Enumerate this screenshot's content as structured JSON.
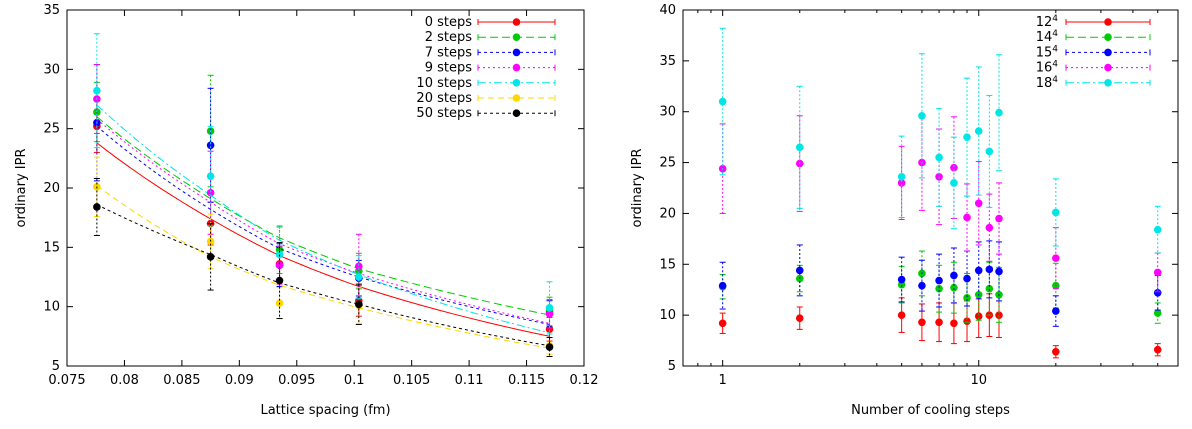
{
  "chart_data": [
    {
      "type": "scatter",
      "xlabel": "Lattice spacing (fm)",
      "ylabel": "ordinary IPR",
      "xlim": [
        0.075,
        0.12
      ],
      "ylim": [
        5,
        35
      ],
      "x_scale": "linear",
      "xticks": [
        0.075,
        0.08,
        0.085,
        0.09,
        0.095,
        0.1,
        0.105,
        0.11,
        0.115,
        0.12
      ],
      "xtick_labels": [
        "0.075",
        "0.08",
        "0.085",
        "0.09",
        "0.095",
        "0.1",
        "0.105",
        "0.11",
        "0.115",
        "0.12"
      ],
      "yticks": [
        5,
        10,
        15,
        20,
        25,
        30,
        35
      ],
      "ytick_labels": [
        "5",
        "10",
        "15",
        "20",
        "25",
        "30",
        "35"
      ],
      "legend_position": "top-right",
      "x": [
        0.0776,
        0.0875,
        0.0935,
        0.1004,
        0.117
      ],
      "series": [
        {
          "name": "0 steps",
          "color": "#ff0000",
          "dash": "solid",
          "y": [
            25.2,
            17.0,
            13.6,
            10.5,
            8.1
          ],
          "err": [
            2.2,
            1.8,
            1.5,
            1.3,
            1.0
          ],
          "fit": [
            23.8,
            17.4,
            14.3,
            11.7,
            7.5
          ]
        },
        {
          "name": "2 steps",
          "color": "#00cc00",
          "dash": "8,4",
          "y": [
            26.4,
            24.8,
            14.8,
            13.0,
            9.6
          ],
          "err": [
            2.5,
            4.7,
            2.0,
            1.5,
            1.2
          ],
          "fit": [
            26.0,
            19.1,
            15.8,
            13.2,
            9.3
          ]
        },
        {
          "name": "7 steps",
          "color": "#0000ff",
          "dash": "3,3",
          "y": [
            25.5,
            23.6,
            13.5,
            12.4,
            9.4
          ],
          "err": [
            4.9,
            4.8,
            1.8,
            1.5,
            1.1
          ],
          "fit": [
            25.2,
            18.2,
            14.9,
            12.5,
            8.5
          ]
        },
        {
          "name": "9 steps",
          "color": "#ff00ff",
          "dash": "2,3",
          "y": [
            27.5,
            19.6,
            13.5,
            13.4,
            9.4
          ],
          "err": [
            2.9,
            3.5,
            1.6,
            2.7,
            1.2
          ],
          "fit": [
            25.8,
            18.8,
            15.3,
            12.8,
            8.6
          ]
        },
        {
          "name": "10 steps",
          "color": "#00e5e5",
          "dash": "8,3,2,3",
          "y": [
            28.2,
            21.0,
            14.4,
            12.5,
            9.9
          ],
          "err": [
            4.8,
            4.2,
            2.3,
            1.8,
            2.2
          ],
          "fit": [
            27.0,
            19.4,
            15.6,
            12.7,
            7.8
          ]
        },
        {
          "name": "20 steps",
          "color": "#ffd700",
          "dash": "6,4",
          "y": [
            20.1,
            15.5,
            10.3,
            10.1,
            6.7
          ],
          "err": [
            2.5,
            2.3,
            1.3,
            1.5,
            0.7
          ],
          "fit": [
            20.2,
            14.2,
            11.8,
            9.9,
            6.5
          ]
        },
        {
          "name": "50 steps",
          "color": "#000000",
          "dash": "3,3",
          "y": [
            18.4,
            14.2,
            12.2,
            10.2,
            6.6
          ],
          "err": [
            2.4,
            2.8,
            3.2,
            1.7,
            0.8
          ],
          "fit": [
            18.6,
            14.4,
            12.0,
            10.2,
            6.7
          ]
        }
      ]
    },
    {
      "type": "scatter",
      "xlabel": "Number of cooling steps",
      "ylabel": "ordinary IPR",
      "xlim": [
        0.7,
        60
      ],
      "ylim": [
        5,
        40
      ],
      "x_scale": "log",
      "xticks": [
        1,
        10
      ],
      "xtick_labels": [
        "1",
        "10"
      ],
      "yticks": [
        5,
        10,
        15,
        20,
        25,
        30,
        35,
        40
      ],
      "ytick_labels": [
        "5",
        "10",
        "15",
        "20",
        "25",
        "30",
        "35",
        "40"
      ],
      "legend_position": "top-right",
      "series": [
        {
          "name": "12",
          "name_superscript": "4",
          "color": "#ff0000",
          "dash": "solid",
          "x": [
            1,
            2,
            5,
            6,
            7,
            8,
            9,
            10,
            11,
            12,
            20,
            50
          ],
          "y": [
            9.2,
            9.7,
            10.0,
            9.3,
            9.3,
            9.2,
            9.4,
            9.9,
            10.0,
            10.0,
            6.4,
            6.6
          ],
          "err": [
            1.0,
            1.1,
            1.7,
            1.8,
            1.9,
            2.0,
            2.0,
            2.1,
            2.1,
            2.2,
            0.6,
            0.6
          ]
        },
        {
          "name": "14",
          "name_superscript": "4",
          "color": "#00cc00",
          "dash": "8,4",
          "x": [
            1,
            2,
            5,
            6,
            7,
            8,
            9,
            10,
            11,
            12,
            20,
            50
          ],
          "y": [
            12.8,
            13.6,
            13.0,
            14.1,
            12.6,
            12.7,
            11.7,
            12.0,
            12.6,
            12.0,
            12.9,
            10.2
          ],
          "err": [
            1.2,
            1.3,
            1.8,
            2.2,
            2.3,
            2.5,
            2.4,
            2.5,
            2.6,
            2.7,
            2.2,
            1.0
          ]
        },
        {
          "name": "15",
          "name_superscript": "4",
          "color": "#0000ff",
          "dash": "3,3",
          "x": [
            1,
            2,
            5,
            6,
            7,
            8,
            9,
            10,
            11,
            12,
            20,
            50
          ],
          "y": [
            12.9,
            14.4,
            13.5,
            12.9,
            13.4,
            13.9,
            13.6,
            14.4,
            14.5,
            14.3,
            10.4,
            12.2
          ],
          "err": [
            2.3,
            2.5,
            2.2,
            2.5,
            2.6,
            2.7,
            2.7,
            2.8,
            2.8,
            2.9,
            1.5,
            1.7
          ]
        },
        {
          "name": "16",
          "name_superscript": "4",
          "color": "#ff00ff",
          "dash": "2,3",
          "x": [
            1,
            2,
            5,
            6,
            7,
            8,
            9,
            10,
            11,
            12,
            20,
            50
          ],
          "y": [
            24.4,
            24.9,
            23.0,
            25.0,
            23.6,
            24.5,
            19.6,
            21.0,
            18.6,
            19.5,
            15.6,
            14.2
          ],
          "err": [
            4.4,
            4.7,
            3.6,
            4.7,
            4.7,
            5.0,
            3.3,
            4.1,
            3.3,
            3.5,
            3.0,
            1.9
          ]
        },
        {
          "name": "18",
          "name_superscript": "4",
          "color": "#00e5e5",
          "dash": "8,3,2,3",
          "x": [
            1,
            2,
            5,
            6,
            7,
            8,
            9,
            10,
            11,
            12,
            20,
            50
          ],
          "y": [
            31.0,
            26.5,
            23.6,
            29.6,
            25.5,
            23.0,
            27.5,
            28.1,
            26.1,
            29.9,
            20.1,
            18.4
          ],
          "err": [
            7.2,
            6.0,
            4.0,
            6.1,
            4.8,
            4.5,
            5.8,
            6.3,
            5.5,
            5.7,
            3.3,
            2.3
          ]
        }
      ]
    }
  ]
}
